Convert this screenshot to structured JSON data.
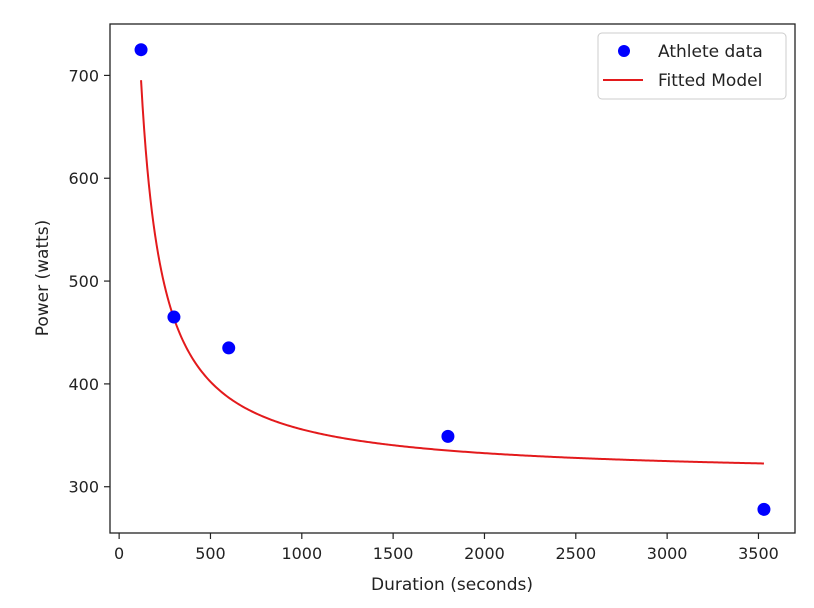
{
  "chart_data": {
    "type": "scatter",
    "xlabel": "Duration (seconds)",
    "ylabel": "Power (watts)",
    "xlim": [
      -50,
      3700
    ],
    "ylim": [
      255,
      750
    ],
    "x_ticks": [
      0,
      500,
      1000,
      1500,
      2000,
      2500,
      3000,
      3500
    ],
    "y_ticks": [
      300,
      400,
      500,
      600,
      700
    ],
    "grid": false,
    "legend_position": "top-right",
    "series": [
      {
        "name": "Athlete data",
        "kind": "scatter",
        "color": "#0000ff",
        "points": [
          {
            "x": 120,
            "y": 725
          },
          {
            "x": 300,
            "y": 465
          },
          {
            "x": 600,
            "y": 435
          },
          {
            "x": 1800,
            "y": 349
          },
          {
            "x": 3530,
            "y": 278
          }
        ]
      },
      {
        "name": "Fitted Model",
        "kind": "line",
        "color": "#e31a1c",
        "model": {
          "form": "y = a + b / x",
          "a": 309.5,
          "b": 46300
        },
        "x_range": [
          120,
          3530
        ]
      }
    ]
  }
}
